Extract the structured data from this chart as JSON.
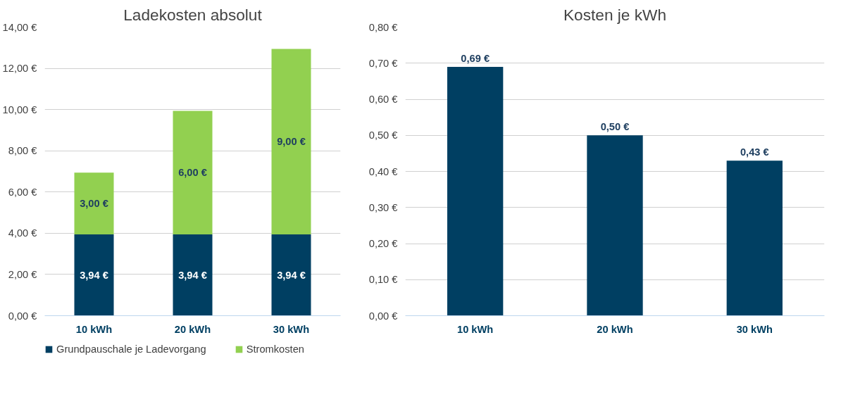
{
  "chart_data": [
    {
      "type": "bar",
      "title": "Ladekosten absolut",
      "categories": [
        "10 kWh",
        "20 kWh",
        "30 kWh"
      ],
      "stacked": true,
      "series": [
        {
          "name": "Grundpauschale je Ladevorgang",
          "color": "#003f62",
          "values": [
            3.94,
            3.94,
            3.94
          ],
          "value_labels": [
            "3,94 €",
            "3,94 €",
            "3,94 €"
          ]
        },
        {
          "name": "Stromkosten",
          "color": "#92d050",
          "values": [
            3.0,
            6.0,
            9.0
          ],
          "value_labels": [
            "3,00 €",
            "6,00 €",
            "9,00 €"
          ]
        }
      ],
      "ylim": [
        0,
        14
      ],
      "yticks": [
        {
          "value": 0,
          "label": "0,00 €"
        },
        {
          "value": 2,
          "label": "2,00 €"
        },
        {
          "value": 4,
          "label": "4,00 €"
        },
        {
          "value": 6,
          "label": "6,00 €"
        },
        {
          "value": 8,
          "label": "8,00 €"
        },
        {
          "value": 10,
          "label": "10,00 €"
        },
        {
          "value": 12,
          "label": "12,00 €"
        },
        {
          "value": 14,
          "label": "14,00 €"
        }
      ],
      "grid": "y",
      "legend": "bottom"
    },
    {
      "type": "bar",
      "title": "Kosten je kWh",
      "categories": [
        "10 kWh",
        "20 kWh",
        "30 kWh"
      ],
      "series": [
        {
          "color": "#003f62",
          "values": [
            0.69,
            0.5,
            0.43
          ],
          "value_labels": [
            "0,69 €",
            "0,50 €",
            "0,43 €"
          ]
        }
      ],
      "ylim": [
        0,
        0.8
      ],
      "yticks": [
        {
          "value": 0,
          "label": "0,00 €"
        },
        {
          "value": 0.1,
          "label": "0,10 €"
        },
        {
          "value": 0.2,
          "label": "0,20 €"
        },
        {
          "value": 0.3,
          "label": "0,30 €"
        },
        {
          "value": 0.4,
          "label": "0,40 €"
        },
        {
          "value": 0.5,
          "label": "0,50 €"
        },
        {
          "value": 0.6,
          "label": "0,60 €"
        },
        {
          "value": 0.7,
          "label": "0,70 €"
        },
        {
          "value": 0.8,
          "label": "0,80 €"
        }
      ],
      "grid": "y",
      "legend": false
    }
  ]
}
